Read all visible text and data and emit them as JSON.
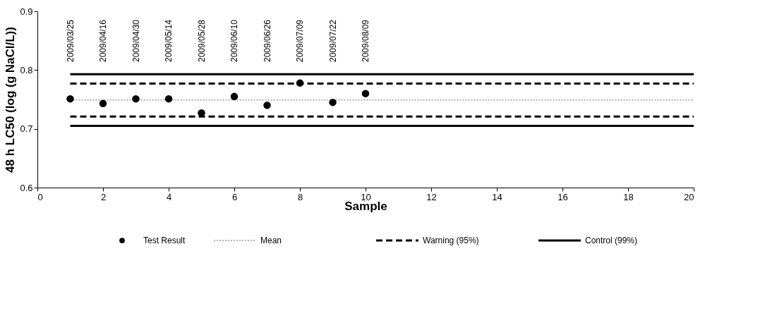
{
  "chart_data": {
    "type": "scatter",
    "xlabel": "Sample",
    "ylabel": "48 h LC50 (log (g NaCl/L))",
    "xlim": [
      0,
      20
    ],
    "xticks": [
      0,
      2,
      4,
      6,
      8,
      10,
      12,
      14,
      16,
      18,
      20
    ],
    "ylim": [
      0.6,
      0.9
    ],
    "yticks": [
      0.6,
      0.7,
      0.8,
      0.9
    ],
    "grid": false,
    "legend": "bottom",
    "series": [
      {
        "name": "Test Result",
        "type": "scatter",
        "marker": "circle",
        "color": "#000000",
        "x": [
          1,
          2,
          3,
          4,
          5,
          6,
          7,
          8,
          9,
          10
        ],
        "values": [
          0.751,
          0.743,
          0.751,
          0.751,
          0.727,
          0.755,
          0.74,
          0.778,
          0.745,
          0.76
        ]
      },
      {
        "name": "Mean",
        "type": "line",
        "color": "#999999",
        "line_style": "dotted",
        "x": [
          1,
          20
        ],
        "values": [
          0.749,
          0.749
        ]
      },
      {
        "name": "Warning (95%)",
        "type": "line",
        "color": "#000000",
        "line_style": "dashed",
        "x": [
          1,
          20
        ],
        "values": [
          0.777,
          0.777
        ]
      },
      {
        "type": "line",
        "color": "#000000",
        "line_style": "dashed",
        "x": [
          1,
          20
        ],
        "values": [
          0.721,
          0.721
        ]
      },
      {
        "name": "Control (99%)",
        "type": "line",
        "color": "#000000",
        "line_style": "solid",
        "x": [
          1,
          20
        ],
        "values": [
          0.793,
          0.793
        ]
      },
      {
        "type": "line",
        "color": "#000000",
        "line_style": "solid",
        "x": [
          1,
          20
        ],
        "values": [
          0.705,
          0.705
        ]
      }
    ],
    "annotations": [
      "2009/03/25",
      "2009/04/16",
      "2009/04/30",
      "2009/05/14",
      "2009/05/28",
      "2009/06/10",
      "2009/06/26",
      "2009/07/09",
      "2009/07/22",
      "2009/08/09"
    ]
  }
}
